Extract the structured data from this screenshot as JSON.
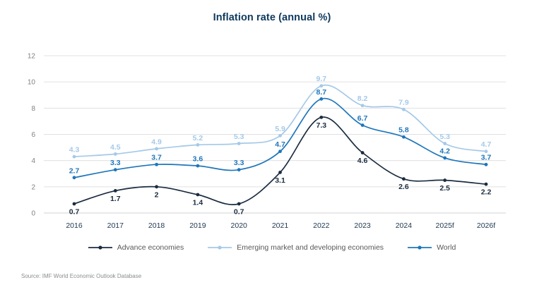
{
  "title": "Inflation rate (annual %)",
  "source": "Source: IMF World Economic Outlook Database",
  "colors": {
    "advance": "#1b2c40",
    "emerging": "#a5c9e8",
    "world": "#1e76bb",
    "grid": "#e0e0e0",
    "baseline": "#d2d2d2",
    "ytick_label": "#7f8184",
    "xtick_label": "#1c3750",
    "title": "#0f3a5d",
    "legend_text": "#58585a",
    "source_text": "#8a8c8e"
  },
  "chart_data": {
    "type": "line",
    "title": "Inflation rate (annual %)",
    "categories": [
      "2016",
      "2017",
      "2018",
      "2019",
      "2020",
      "2021",
      "2022",
      "2023",
      "2024",
      "2025f",
      "2026f"
    ],
    "series": [
      {
        "name": "Advance economies",
        "key": "advance",
        "values": [
          0.7,
          1.7,
          2,
          1.4,
          0.7,
          3.1,
          7.3,
          4.6,
          2.6,
          2.5,
          2.2
        ],
        "label_position": "below"
      },
      {
        "name": "Emerging market and developing economies",
        "key": "emerging",
        "values": [
          4.3,
          4.5,
          4.9,
          5.2,
          5.3,
          5.9,
          9.7,
          8.2,
          7.9,
          5.3,
          4.7
        ],
        "label_position": "above"
      },
      {
        "name": "World",
        "key": "world",
        "values": [
          2.7,
          3.3,
          3.7,
          3.6,
          3.3,
          4.7,
          8.7,
          6.7,
          5.8,
          4.2,
          3.7
        ],
        "label_position": "above"
      }
    ],
    "yticks": [
      0,
      2,
      4,
      6,
      8,
      10,
      12
    ],
    "ylim": [
      0,
      12
    ],
    "xlabel": "",
    "ylabel": "",
    "grid": true,
    "legend_position": "bottom"
  }
}
